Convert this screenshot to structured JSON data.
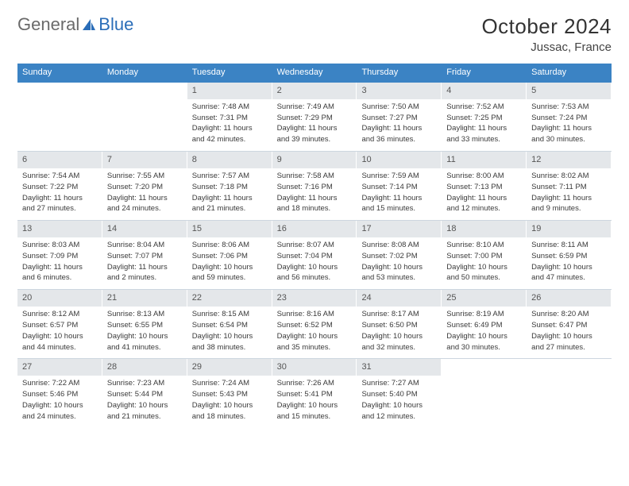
{
  "brand": {
    "part1": "General",
    "part2": "Blue"
  },
  "title": "October 2024",
  "location": "Jussac, France",
  "colors": {
    "header_bg": "#3b83c4",
    "daynum_bg": "#e4e7ea",
    "rule": "#3b83c4"
  },
  "weekdays": [
    "Sunday",
    "Monday",
    "Tuesday",
    "Wednesday",
    "Thursday",
    "Friday",
    "Saturday"
  ],
  "weeks": [
    [
      null,
      null,
      {
        "n": "1",
        "sr": "Sunrise: 7:48 AM",
        "ss": "Sunset: 7:31 PM",
        "d1": "Daylight: 11 hours",
        "d2": "and 42 minutes."
      },
      {
        "n": "2",
        "sr": "Sunrise: 7:49 AM",
        "ss": "Sunset: 7:29 PM",
        "d1": "Daylight: 11 hours",
        "d2": "and 39 minutes."
      },
      {
        "n": "3",
        "sr": "Sunrise: 7:50 AM",
        "ss": "Sunset: 7:27 PM",
        "d1": "Daylight: 11 hours",
        "d2": "and 36 minutes."
      },
      {
        "n": "4",
        "sr": "Sunrise: 7:52 AM",
        "ss": "Sunset: 7:25 PM",
        "d1": "Daylight: 11 hours",
        "d2": "and 33 minutes."
      },
      {
        "n": "5",
        "sr": "Sunrise: 7:53 AM",
        "ss": "Sunset: 7:24 PM",
        "d1": "Daylight: 11 hours",
        "d2": "and 30 minutes."
      }
    ],
    [
      {
        "n": "6",
        "sr": "Sunrise: 7:54 AM",
        "ss": "Sunset: 7:22 PM",
        "d1": "Daylight: 11 hours",
        "d2": "and 27 minutes."
      },
      {
        "n": "7",
        "sr": "Sunrise: 7:55 AM",
        "ss": "Sunset: 7:20 PM",
        "d1": "Daylight: 11 hours",
        "d2": "and 24 minutes."
      },
      {
        "n": "8",
        "sr": "Sunrise: 7:57 AM",
        "ss": "Sunset: 7:18 PM",
        "d1": "Daylight: 11 hours",
        "d2": "and 21 minutes."
      },
      {
        "n": "9",
        "sr": "Sunrise: 7:58 AM",
        "ss": "Sunset: 7:16 PM",
        "d1": "Daylight: 11 hours",
        "d2": "and 18 minutes."
      },
      {
        "n": "10",
        "sr": "Sunrise: 7:59 AM",
        "ss": "Sunset: 7:14 PM",
        "d1": "Daylight: 11 hours",
        "d2": "and 15 minutes."
      },
      {
        "n": "11",
        "sr": "Sunrise: 8:00 AM",
        "ss": "Sunset: 7:13 PM",
        "d1": "Daylight: 11 hours",
        "d2": "and 12 minutes."
      },
      {
        "n": "12",
        "sr": "Sunrise: 8:02 AM",
        "ss": "Sunset: 7:11 PM",
        "d1": "Daylight: 11 hours",
        "d2": "and 9 minutes."
      }
    ],
    [
      {
        "n": "13",
        "sr": "Sunrise: 8:03 AM",
        "ss": "Sunset: 7:09 PM",
        "d1": "Daylight: 11 hours",
        "d2": "and 6 minutes."
      },
      {
        "n": "14",
        "sr": "Sunrise: 8:04 AM",
        "ss": "Sunset: 7:07 PM",
        "d1": "Daylight: 11 hours",
        "d2": "and 2 minutes."
      },
      {
        "n": "15",
        "sr": "Sunrise: 8:06 AM",
        "ss": "Sunset: 7:06 PM",
        "d1": "Daylight: 10 hours",
        "d2": "and 59 minutes."
      },
      {
        "n": "16",
        "sr": "Sunrise: 8:07 AM",
        "ss": "Sunset: 7:04 PM",
        "d1": "Daylight: 10 hours",
        "d2": "and 56 minutes."
      },
      {
        "n": "17",
        "sr": "Sunrise: 8:08 AM",
        "ss": "Sunset: 7:02 PM",
        "d1": "Daylight: 10 hours",
        "d2": "and 53 minutes."
      },
      {
        "n": "18",
        "sr": "Sunrise: 8:10 AM",
        "ss": "Sunset: 7:00 PM",
        "d1": "Daylight: 10 hours",
        "d2": "and 50 minutes."
      },
      {
        "n": "19",
        "sr": "Sunrise: 8:11 AM",
        "ss": "Sunset: 6:59 PM",
        "d1": "Daylight: 10 hours",
        "d2": "and 47 minutes."
      }
    ],
    [
      {
        "n": "20",
        "sr": "Sunrise: 8:12 AM",
        "ss": "Sunset: 6:57 PM",
        "d1": "Daylight: 10 hours",
        "d2": "and 44 minutes."
      },
      {
        "n": "21",
        "sr": "Sunrise: 8:13 AM",
        "ss": "Sunset: 6:55 PM",
        "d1": "Daylight: 10 hours",
        "d2": "and 41 minutes."
      },
      {
        "n": "22",
        "sr": "Sunrise: 8:15 AM",
        "ss": "Sunset: 6:54 PM",
        "d1": "Daylight: 10 hours",
        "d2": "and 38 minutes."
      },
      {
        "n": "23",
        "sr": "Sunrise: 8:16 AM",
        "ss": "Sunset: 6:52 PM",
        "d1": "Daylight: 10 hours",
        "d2": "and 35 minutes."
      },
      {
        "n": "24",
        "sr": "Sunrise: 8:17 AM",
        "ss": "Sunset: 6:50 PM",
        "d1": "Daylight: 10 hours",
        "d2": "and 32 minutes."
      },
      {
        "n": "25",
        "sr": "Sunrise: 8:19 AM",
        "ss": "Sunset: 6:49 PM",
        "d1": "Daylight: 10 hours",
        "d2": "and 30 minutes."
      },
      {
        "n": "26",
        "sr": "Sunrise: 8:20 AM",
        "ss": "Sunset: 6:47 PM",
        "d1": "Daylight: 10 hours",
        "d2": "and 27 minutes."
      }
    ],
    [
      {
        "n": "27",
        "sr": "Sunrise: 7:22 AM",
        "ss": "Sunset: 5:46 PM",
        "d1": "Daylight: 10 hours",
        "d2": "and 24 minutes."
      },
      {
        "n": "28",
        "sr": "Sunrise: 7:23 AM",
        "ss": "Sunset: 5:44 PM",
        "d1": "Daylight: 10 hours",
        "d2": "and 21 minutes."
      },
      {
        "n": "29",
        "sr": "Sunrise: 7:24 AM",
        "ss": "Sunset: 5:43 PM",
        "d1": "Daylight: 10 hours",
        "d2": "and 18 minutes."
      },
      {
        "n": "30",
        "sr": "Sunrise: 7:26 AM",
        "ss": "Sunset: 5:41 PM",
        "d1": "Daylight: 10 hours",
        "d2": "and 15 minutes."
      },
      {
        "n": "31",
        "sr": "Sunrise: 7:27 AM",
        "ss": "Sunset: 5:40 PM",
        "d1": "Daylight: 10 hours",
        "d2": "and 12 minutes."
      },
      null,
      null
    ]
  ]
}
